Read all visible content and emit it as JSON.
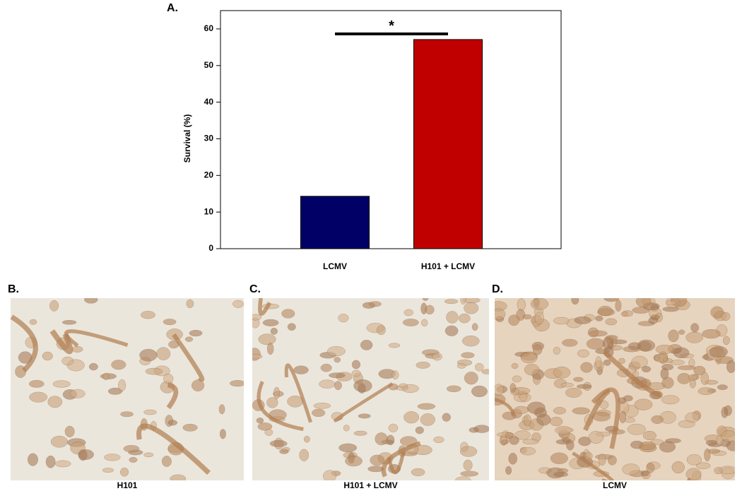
{
  "chart_data": {
    "type": "bar",
    "panel_label": "A.",
    "ylabel": "Survival (%)",
    "categories": [
      "LCMV",
      "H101 + LCMV"
    ],
    "values": [
      14.3,
      57.1
    ],
    "colors": [
      "#000066",
      "#c00000"
    ],
    "ylim": [
      0,
      65
    ],
    "yticks": [
      0,
      10,
      20,
      30,
      40,
      50,
      60
    ],
    "grid": false,
    "annotations": [
      "*"
    ]
  },
  "panels": [
    {
      "label": "B.",
      "caption": "H101"
    },
    {
      "label": "C.",
      "caption": "H101 + LCMV"
    },
    {
      "label": "D.",
      "caption": "LCMV"
    }
  ]
}
